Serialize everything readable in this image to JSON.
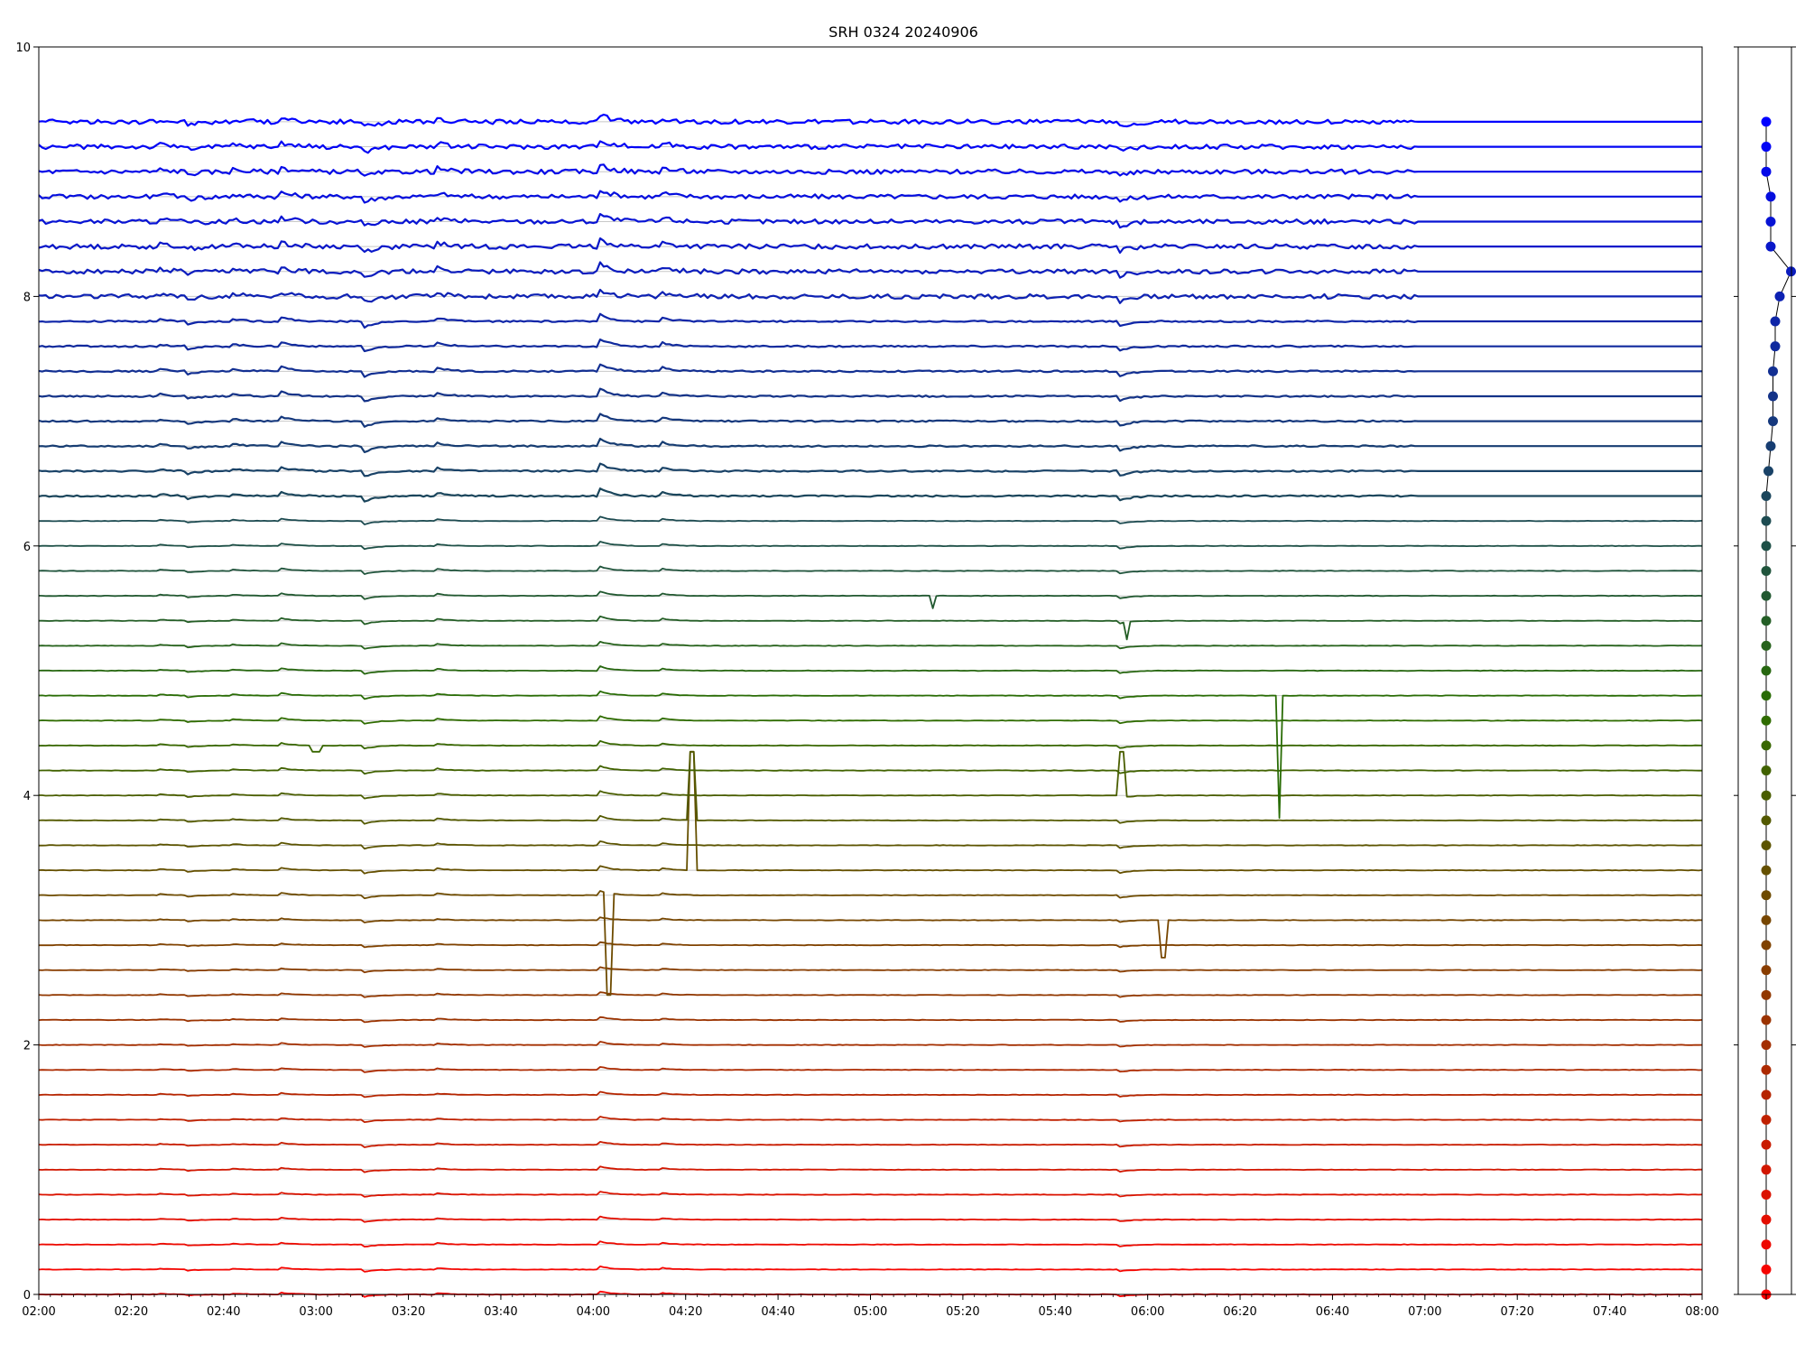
{
  "chart_data": [
    {
      "type": "line",
      "title": "SRH 0324 20240906",
      "xlabel": "",
      "ylabel": "",
      "ylim": [
        0,
        10
      ],
      "yticks": [
        0,
        2,
        4,
        6,
        8,
        10
      ],
      "y_tick_labels": [
        "0",
        "2",
        "4",
        "6",
        "8",
        "10"
      ],
      "x_range_minutes": [
        120,
        480
      ],
      "x_tick_labels": [
        "02:00",
        "02:20",
        "02:40",
        "03:00",
        "03:20",
        "03:40",
        "04:00",
        "04:20",
        "04:40",
        "05:00",
        "05:20",
        "05:40",
        "06:00",
        "06:20",
        "06:40",
        "07:00",
        "07:20",
        "07:40",
        "08:00"
      ],
      "grid": "horizontal lines at each trace baseline",
      "series_count": 48,
      "baseline_step": 0.2,
      "first_baseline": 0.0,
      "color_low": "#ff0000",
      "color_mid": "#2a6e00",
      "color_high": "#0000ff",
      "common_events": [
        {
          "time": "02:26",
          "amp": 0.03
        },
        {
          "time": "02:32",
          "amp": -0.04
        },
        {
          "time": "02:42",
          "amp": 0.03
        },
        {
          "time": "02:52",
          "amp": 0.07
        },
        {
          "time": "03:10",
          "amp": -0.09
        },
        {
          "time": "03:26",
          "amp": 0.05
        },
        {
          "time": "04:01",
          "amp": 0.12
        },
        {
          "time": "04:15",
          "amp": 0.05
        },
        {
          "time": "05:54",
          "amp": -0.06
        }
      ],
      "spikes": [
        {
          "series": 22,
          "start": "02:59",
          "end": "03:01",
          "level": 4.35
        },
        {
          "series": 19,
          "start": "04:21",
          "end": "04:22",
          "level": 4.35
        },
        {
          "series": 17,
          "start": "04:21",
          "end": "04:22",
          "level": 4.35
        },
        {
          "series": 24,
          "start": "06:28",
          "end": "06:29",
          "level": 3.82
        },
        {
          "series": 20,
          "start": "05:54",
          "end": "05:55",
          "level": 4.35
        },
        {
          "series": 16,
          "start": "04:03",
          "end": "04:04",
          "level": 2.4
        },
        {
          "series": 15,
          "start": "06:03",
          "end": "06:04",
          "level": 2.7
        },
        {
          "series": 28,
          "start": "05:13",
          "end": "05:14",
          "level": 5.5
        },
        {
          "series": 27,
          "start": "05:55",
          "end": "05:56",
          "level": 5.25
        }
      ],
      "data_end_time_upper": "06:58",
      "upper_series_end_levels": [
        9.4,
        9.2,
        9.0,
        8.85,
        9.0,
        8.55,
        8.45,
        8.4,
        7.95,
        7.8,
        7.65,
        7.4,
        7.15,
        6.9,
        6.65,
        6.45
      ]
    },
    {
      "type": "scatter",
      "title": "",
      "points": [
        0.0,
        0.2,
        0.4,
        0.6,
        0.8,
        1.0,
        1.2,
        1.4,
        1.6,
        1.8,
        2.0,
        2.2,
        2.4,
        2.6,
        2.8,
        3.0,
        3.2,
        3.4,
        3.6,
        3.8,
        4.0,
        4.2,
        4.4,
        4.6,
        4.8,
        5.0,
        5.2,
        5.4,
        5.6,
        5.8,
        6.0,
        6.2,
        6.4,
        6.6,
        6.8,
        7.0,
        7.2,
        7.4,
        7.6,
        7.8,
        8.0,
        8.2,
        8.4,
        8.6,
        8.8,
        9.0,
        9.2,
        9.4
      ],
      "x_offsets": [
        0,
        0,
        0,
        0,
        0,
        0,
        0,
        0,
        0,
        0,
        0,
        0,
        0,
        0,
        0,
        0,
        0,
        0,
        0,
        0,
        0,
        0,
        0,
        0,
        0,
        0,
        0,
        0,
        0,
        0,
        0,
        0,
        0,
        0.05,
        0.1,
        0.15,
        0.15,
        0.15,
        0.2,
        0.2,
        0.3,
        0.55,
        0.1,
        0.1,
        0.1,
        0.0,
        0.0,
        0.0
      ],
      "ylim": [
        0,
        10
      ]
    }
  ]
}
